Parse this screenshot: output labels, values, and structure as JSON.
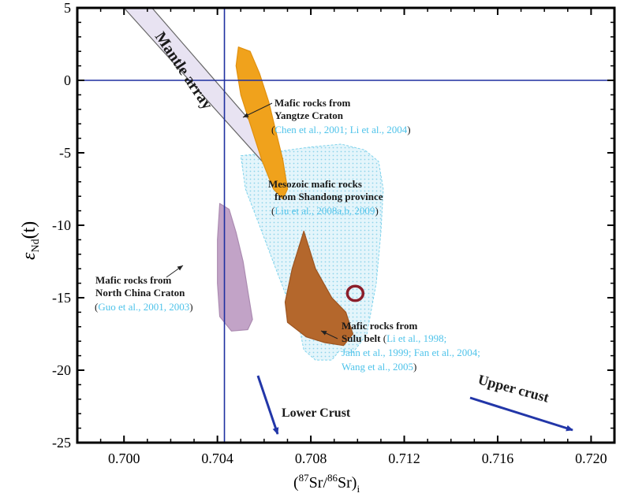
{
  "chart_data": {
    "type": "scatter",
    "xlabel_prefix": "(",
    "xlabel_sup1": "87",
    "xlabel_mid": "Sr/",
    "xlabel_sup2": "86",
    "xlabel_end": "Sr)",
    "xlabel_sub": "i",
    "ylabel_main": "ε",
    "ylabel_sub": "Nd",
    "ylabel_end": "(t)",
    "xlim": [
      0.698,
      0.721
    ],
    "ylim": [
      -25,
      5
    ],
    "x_ticks": [
      "0.700",
      "0.704",
      "0.708",
      "0.712",
      "0.716",
      "0.720"
    ],
    "x_tick_values": [
      0.7,
      0.704,
      0.708,
      0.712,
      0.716,
      0.72
    ],
    "y_ticks": [
      "5",
      "0",
      "-5",
      "-10",
      "-15",
      "-20",
      "-25"
    ],
    "y_tick_values": [
      5,
      0,
      -5,
      -10,
      -15,
      -20,
      -25
    ],
    "reference_lines": {
      "x": 0.7043,
      "y": 0
    },
    "fields": [
      {
        "name": "mantle-array",
        "fill": "#e8e3f2",
        "stroke": "#666666",
        "points": [
          [
            0.7,
            5.0
          ],
          [
            0.7012,
            5.0
          ],
          [
            0.7068,
            -5.4
          ],
          [
            0.7062,
            -6.1
          ]
        ]
      },
      {
        "name": "yangtze-field",
        "fill": "#f0a21c",
        "stroke": "#e0900e",
        "points": [
          [
            0.7049,
            2.3
          ],
          [
            0.7054,
            2.0
          ],
          [
            0.7058,
            0.5
          ],
          [
            0.7062,
            -1.5
          ],
          [
            0.7065,
            -3.5
          ],
          [
            0.7068,
            -5.5
          ],
          [
            0.707,
            -7.5
          ],
          [
            0.7068,
            -8.2
          ],
          [
            0.7064,
            -7.5
          ],
          [
            0.7059,
            -5.5
          ],
          [
            0.7054,
            -3.0
          ],
          [
            0.705,
            -1.0
          ],
          [
            0.7048,
            1.0
          ]
        ]
      },
      {
        "name": "shandong-field",
        "fill": "#e4f5fb",
        "stroke": "#7fd3ec",
        "points": [
          [
            0.705,
            -5.2
          ],
          [
            0.7062,
            -5.0
          ],
          [
            0.708,
            -4.6
          ],
          [
            0.7093,
            -4.4
          ],
          [
            0.7103,
            -4.8
          ],
          [
            0.7109,
            -5.6
          ],
          [
            0.7111,
            -7.5
          ],
          [
            0.711,
            -10.5
          ],
          [
            0.7108,
            -14.0
          ],
          [
            0.7104,
            -17.5
          ],
          [
            0.7098,
            -18.8
          ],
          [
            0.7092,
            -18.7
          ],
          [
            0.7089,
            -19.3
          ],
          [
            0.7082,
            -19.3
          ],
          [
            0.7077,
            -18.6
          ],
          [
            0.7075,
            -17.0
          ],
          [
            0.7071,
            -15.5
          ],
          [
            0.7065,
            -13.0
          ],
          [
            0.7058,
            -10.0
          ],
          [
            0.7052,
            -7.5
          ]
        ]
      },
      {
        "name": "sulu-field",
        "fill": "#b4672c",
        "stroke": "#9c5420",
        "points": [
          [
            0.7077,
            -10.4
          ],
          [
            0.7082,
            -13.0
          ],
          [
            0.7089,
            -15.0
          ],
          [
            0.7095,
            -16.0
          ],
          [
            0.7098,
            -17.5
          ],
          [
            0.7094,
            -18.3
          ],
          [
            0.7086,
            -18.1
          ],
          [
            0.7078,
            -17.7
          ],
          [
            0.707,
            -16.7
          ],
          [
            0.7069,
            -15.3
          ],
          [
            0.7072,
            -13.0
          ]
        ]
      },
      {
        "name": "north-china-field",
        "fill": "#c2a3c7",
        "stroke": "#ab8bb1",
        "points": [
          [
            0.7041,
            -8.5
          ],
          [
            0.7045,
            -8.9
          ],
          [
            0.7048,
            -10.5
          ],
          [
            0.7051,
            -12.5
          ],
          [
            0.7053,
            -14.5
          ],
          [
            0.7055,
            -16.5
          ],
          [
            0.7053,
            -17.2
          ],
          [
            0.7046,
            -17.3
          ],
          [
            0.7041,
            -16.3
          ],
          [
            0.704,
            -14.0
          ],
          [
            0.704,
            -11.0
          ]
        ]
      }
    ],
    "small_field": {
      "name": "small-ring",
      "x": 0.7099,
      "y": -14.7,
      "rx": 0.0001,
      "ry": 0.5,
      "color": "#8b1e2a"
    },
    "annotations": {
      "mantle_array": "Mantle array",
      "yangtze": {
        "title1": "Mafic rocks from",
        "title2": "Yangtze Craton",
        "ref": "Chen et al., 2001; Li et al., 2004"
      },
      "shandong": {
        "title1": "Mesozoic mafic rocks",
        "title2": "from Shandong province",
        "ref": "Liu et al., 2008a,b, 2009"
      },
      "north_china": {
        "title1": "Mafic rocks from",
        "title2": "North China Craton",
        "ref": "Guo et al., 2001, 2003"
      },
      "sulu": {
        "title1": "Mafic rocks from",
        "title2": "Sulu belt",
        "ref1": "Li et al., 1998;",
        "ref2": "Jahn et al., 1999; Fan et al., 2004;",
        "ref3": "Wang et al., 2005"
      },
      "lower_crust": "Lower Crust",
      "upper_crust": "Upper crust"
    },
    "colors": {
      "axis": "#000000",
      "reference": "#1e2fa0",
      "arrow": "#2236a8",
      "reference_text": "#4fc3ea"
    }
  }
}
